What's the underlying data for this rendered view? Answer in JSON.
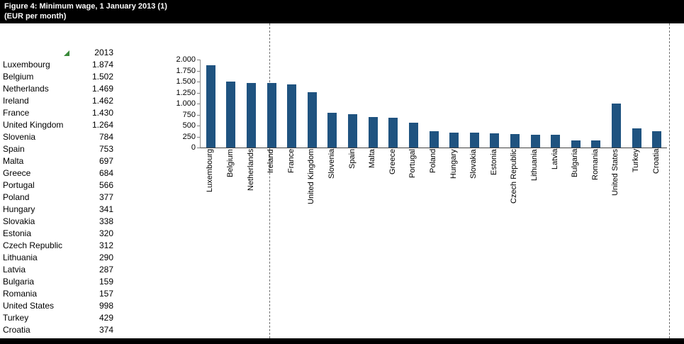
{
  "header": {
    "title_line1": "Figure 4: Minimum wage, 1 January 2013 (1)",
    "title_line2": "(EUR per month)"
  },
  "table": {
    "year_header": "2013",
    "rows": [
      {
        "country": "Luxembourg",
        "value": "1.874"
      },
      {
        "country": "Belgium",
        "value": "1.502"
      },
      {
        "country": "Netherlands",
        "value": "1.469"
      },
      {
        "country": "Ireland",
        "value": "1.462"
      },
      {
        "country": "France",
        "value": "1.430"
      },
      {
        "country": "United Kingdom",
        "value": "1.264"
      },
      {
        "country": "Slovenia",
        "value": "784"
      },
      {
        "country": "Spain",
        "value": "753"
      },
      {
        "country": "Malta",
        "value": "697"
      },
      {
        "country": "Greece",
        "value": "684"
      },
      {
        "country": "Portugal",
        "value": "566"
      },
      {
        "country": "Poland",
        "value": "377"
      },
      {
        "country": "Hungary",
        "value": "341"
      },
      {
        "country": "Slovakia",
        "value": "338"
      },
      {
        "country": "Estonia",
        "value": "320"
      },
      {
        "country": "Czech Republic",
        "value": "312"
      },
      {
        "country": "Lithuania",
        "value": "290"
      },
      {
        "country": "Latvia",
        "value": "287"
      },
      {
        "country": "Bulgaria",
        "value": "159"
      },
      {
        "country": "Romania",
        "value": "157"
      },
      {
        "country": "United States",
        "value": "998"
      },
      {
        "country": "Turkey",
        "value": "429"
      },
      {
        "country": "Croatia",
        "value": "374"
      }
    ]
  },
  "chart_data": {
    "type": "bar",
    "title": "Figure 4: Minimum wage, 1 January 2013 (1)",
    "subtitle": "(EUR per month)",
    "categories": [
      "Luxembourg",
      "Belgium",
      "Netherlands",
      "Ireland",
      "France",
      "United Kingdom",
      "Slovenia",
      "Spain",
      "Malta",
      "Greece",
      "Portugal",
      "Poland",
      "Hungary",
      "Slovakia",
      "Estonia",
      "Czech Republic",
      "Lithuania",
      "Latvia",
      "Bulgaria",
      "Romania",
      "United States",
      "Turkey",
      "Croatia"
    ],
    "values": [
      1874,
      1502,
      1469,
      1462,
      1430,
      1264,
      784,
      753,
      697,
      684,
      566,
      377,
      341,
      338,
      320,
      312,
      290,
      287,
      159,
      157,
      998,
      429,
      374
    ],
    "xlabel": "",
    "ylabel": "",
    "ylim": [
      0,
      2000
    ],
    "yticks": [
      {
        "value": 0,
        "label": "0"
      },
      {
        "value": 250,
        "label": "250"
      },
      {
        "value": 500,
        "label": "500"
      },
      {
        "value": 750,
        "label": "750"
      },
      {
        "value": 1000,
        "label": "1.000"
      },
      {
        "value": 1250,
        "label": "1.250"
      },
      {
        "value": 1500,
        "label": "1.500"
      },
      {
        "value": 1750,
        "label": "1.750"
      },
      {
        "value": 2000,
        "label": "2.000"
      }
    ],
    "grid": false,
    "legend": "none",
    "bar_color": "#1F5380"
  },
  "colors": {
    "header_bg": "#000000",
    "header_text": "#ffffff",
    "pagebreak_dash": "#707070",
    "marker_green": "#3a8a3a"
  }
}
